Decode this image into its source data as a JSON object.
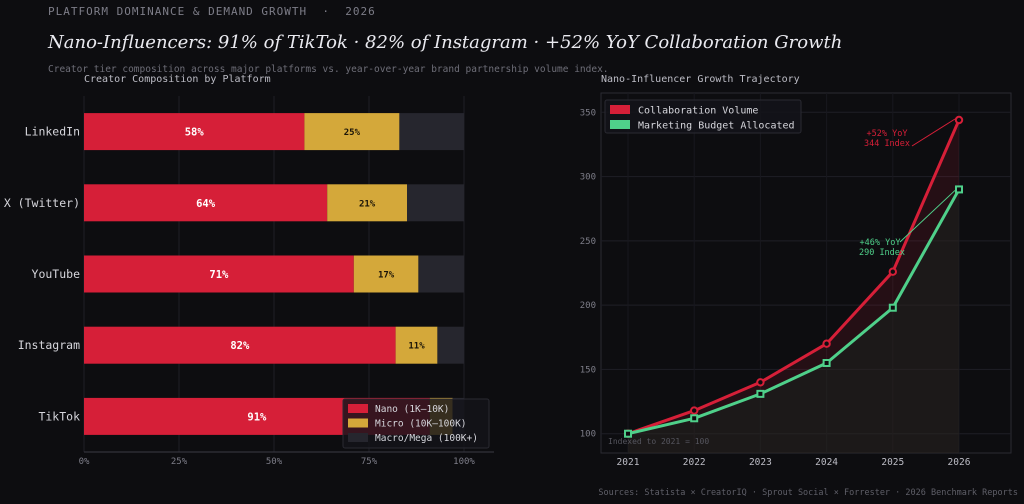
{
  "header": {
    "eyebrow": "PLATFORM DOMINANCE & DEMAND GROWTH  ·  2026",
    "title": "Nano-Influencers: 91% of TikTok · 82% of Instagram · +52% YoY Collaboration Growth",
    "subtitle": "Creator tier composition across major platforms vs. year-over-year brand partnership volume index.",
    "sources": "Sources: Statista × CreatorIQ · Sprout Social × Forrester · 2026 Benchmark Reports"
  },
  "colors": {
    "nano": "#d61f38",
    "micro": "#d4a83a",
    "macro": "#26262e",
    "collab": "#d61f38",
    "budget": "#4fd08a"
  },
  "chart_data": [
    {
      "type": "bar",
      "orientation": "horizontal",
      "stacked": true,
      "title": "Creator Composition by Platform",
      "categories": [
        "LinkedIn",
        "X (Twitter)",
        "YouTube",
        "Instagram",
        "TikTok"
      ],
      "series": [
        {
          "name": "Nano (1K–10K)",
          "values": [
            58,
            64,
            71,
            82,
            91
          ]
        },
        {
          "name": "Micro (10K–100K)",
          "values": [
            25,
            21,
            17,
            11,
            6
          ]
        },
        {
          "name": "Macro/Mega (100K+)",
          "values": [
            17,
            15,
            12,
            7,
            3
          ]
        }
      ],
      "bar_labels": {
        "nano": [
          "58%",
          "64%",
          "71%",
          "82%",
          "91%"
        ],
        "micro": [
          "25%",
          "21%",
          "17%",
          "11%",
          ""
        ]
      },
      "xticks": [
        "0%",
        "25%",
        "50%",
        "75%",
        "100%"
      ],
      "xlim": [
        0,
        100
      ],
      "legend_position": "bottom-right",
      "grid": true
    },
    {
      "type": "line",
      "title": "Nano-Influencer Growth Trajectory",
      "x": [
        "2021",
        "2022",
        "2023",
        "2024",
        "2025",
        "2026"
      ],
      "series": [
        {
          "name": "Collaboration Volume",
          "values": [
            100,
            118,
            140,
            170,
            226,
            344
          ]
        },
        {
          "name": "Marketing Budget Allocated",
          "values": [
            100,
            112,
            131,
            155,
            198,
            290
          ]
        }
      ],
      "yticks": [
        "100",
        "150",
        "200",
        "250",
        "300",
        "350"
      ],
      "ylim": [
        85,
        365
      ],
      "legend_position": "top-left",
      "grid": true,
      "annotations": {
        "collab": [
          "+52% YoY",
          "344 Index"
        ],
        "budget": [
          "+46% YoY",
          "290 Index"
        ],
        "note": "Indexed to 2021 = 100"
      }
    }
  ]
}
